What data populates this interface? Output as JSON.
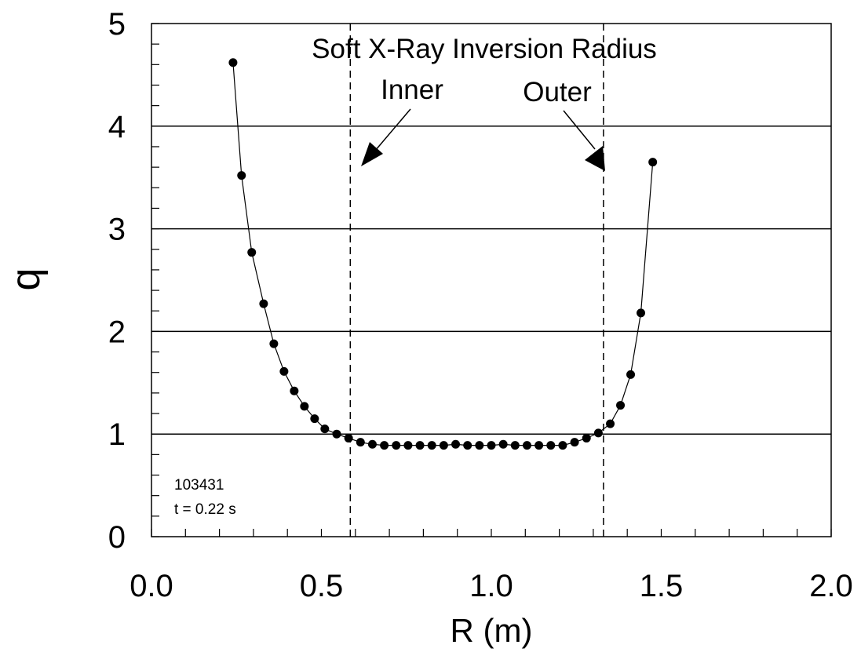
{
  "chart_data": {
    "type": "scatter",
    "xlabel": "R (m)",
    "ylabel": "q",
    "xlim": [
      0.0,
      2.0
    ],
    "ylim": [
      0,
      5
    ],
    "x_ticks": [
      "0.0",
      "0.5",
      "1.0",
      "1.5",
      "2.0"
    ],
    "y_ticks": [
      "0",
      "1",
      "2",
      "3",
      "4",
      "5"
    ],
    "horizontal_lines": [
      1,
      2,
      3,
      4
    ],
    "grid": false,
    "series": [
      {
        "marker": "filled-circle",
        "line": "solid",
        "x": [
          0.24,
          0.265,
          0.295,
          0.33,
          0.36,
          0.39,
          0.42,
          0.45,
          0.48,
          0.51,
          0.545,
          0.58,
          0.615,
          0.65,
          0.685,
          0.72,
          0.755,
          0.79,
          0.825,
          0.86,
          0.895,
          0.93,
          0.965,
          1.0,
          1.035,
          1.07,
          1.105,
          1.14,
          1.175,
          1.21,
          1.245,
          1.28,
          1.315,
          1.35,
          1.38,
          1.41,
          1.44,
          1.475
        ],
        "y": [
          4.62,
          3.52,
          2.77,
          2.27,
          1.88,
          1.61,
          1.42,
          1.27,
          1.15,
          1.05,
          1.0,
          0.96,
          0.92,
          0.9,
          0.89,
          0.89,
          0.89,
          0.89,
          0.89,
          0.89,
          0.9,
          0.89,
          0.89,
          0.89,
          0.9,
          0.89,
          0.89,
          0.89,
          0.89,
          0.89,
          0.92,
          0.96,
          1.01,
          1.1,
          1.28,
          1.58,
          2.18,
          3.65
        ]
      }
    ],
    "inversion_radius": {
      "label": "Soft X-Ray Inversion Radius",
      "inner": {
        "label": "Inner",
        "x": 0.585
      },
      "outer": {
        "label": "Outer",
        "x": 1.33
      }
    },
    "shot_info": [
      "103431",
      "t = 0.22 s"
    ]
  }
}
